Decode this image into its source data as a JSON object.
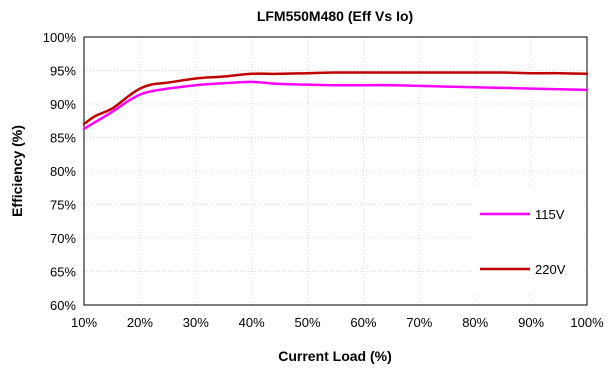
{
  "chart_data": {
    "type": "line",
    "title": "LFM550M480 (Eff Vs Io)",
    "xlabel": "Current Load (%)",
    "ylabel": "Efficiency (%)",
    "xlim": [
      10,
      100
    ],
    "ylim": [
      60,
      100
    ],
    "x_ticks": [
      "10%",
      "20%",
      "30%",
      "40%",
      "50%",
      "60%",
      "70%",
      "80%",
      "90%",
      "100%"
    ],
    "y_ticks": [
      "60%",
      "65%",
      "70%",
      "75%",
      "80%",
      "85%",
      "90%",
      "95%",
      "100%"
    ],
    "grid": true,
    "legend_position": "bottom-right",
    "series": [
      {
        "name": "115V",
        "color": "#ff00ff",
        "x": [
          10,
          12,
          15,
          18,
          20,
          22,
          25,
          30,
          35,
          40,
          45,
          50,
          55,
          60,
          65,
          70,
          75,
          80,
          85,
          90,
          95,
          100
        ],
        "y": [
          86.3,
          87.3,
          88.8,
          90.5,
          91.4,
          91.9,
          92.3,
          92.8,
          93.1,
          93.3,
          93.0,
          92.9,
          92.8,
          92.8,
          92.8,
          92.7,
          92.6,
          92.5,
          92.4,
          92.3,
          92.2,
          92.1
        ]
      },
      {
        "name": "220V",
        "color": "#c00000",
        "x": [
          10,
          12,
          15,
          18,
          20,
          22,
          25,
          30,
          35,
          40,
          45,
          50,
          55,
          60,
          65,
          70,
          75,
          80,
          85,
          90,
          95,
          100
        ],
        "y": [
          87.0,
          88.2,
          89.3,
          91.2,
          92.3,
          92.9,
          93.2,
          93.8,
          94.1,
          94.5,
          94.5,
          94.6,
          94.7,
          94.7,
          94.7,
          94.7,
          94.7,
          94.7,
          94.7,
          94.6,
          94.6,
          94.5
        ]
      }
    ]
  }
}
